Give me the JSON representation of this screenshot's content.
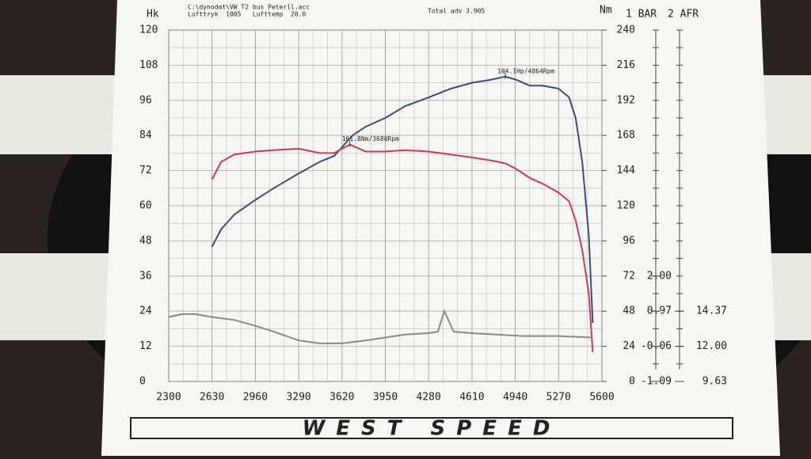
{
  "chart_data": {
    "type": "line",
    "header": [
      "C:\\dynodat\\VW T2 bus Peterll.acc",
      "Lufttryk  1005   Lufttemp  20.0",
      "Total adv 3.905"
    ],
    "y_label": "Hk",
    "y2_label": "Nm",
    "y3_label": "1 BAR",
    "y4_label": "2 AFR",
    "xlim": [
      2300,
      5600
    ],
    "xticks": [
      2300,
      2630,
      2960,
      3290,
      3620,
      3950,
      4280,
      4610,
      4940,
      5270,
      5600
    ],
    "ylim": [
      0,
      120
    ],
    "yticks": [
      0,
      12,
      24,
      36,
      48,
      60,
      72,
      84,
      96,
      108,
      120
    ],
    "y2lim": [
      0,
      240
    ],
    "y2ticks": [
      0,
      24,
      48,
      72,
      96,
      120,
      144,
      168,
      192,
      216,
      240
    ],
    "y3lim": [
      -1.09,
      9.21
    ],
    "y3ticks": [
      {
        "value": -1.09,
        "label": "-1.09"
      },
      {
        "value": -0.06,
        "label": "-0.06"
      },
      {
        "value": 0.97,
        "label": "0.97"
      },
      {
        "value": 2,
        "label": "2.00"
      }
    ],
    "y4lim": [
      9.63,
      33.33
    ],
    "y4ticks": [
      {
        "value": 9.63,
        "label": "9.63"
      },
      {
        "value": 12,
        "label": "12.00"
      },
      {
        "value": 14.37,
        "label": "14.37"
      }
    ],
    "grid": true,
    "series": [
      {
        "color": "#3d4a7a",
        "axis": "y",
        "x": [
          2630,
          2700,
          2800,
          2960,
          3100,
          3290,
          3450,
          3560,
          3620,
          3700,
          3800,
          3950,
          4100,
          4280,
          4450,
          4610,
          4750,
          4864,
          4950,
          5050,
          5150,
          5270,
          5350,
          5400,
          5450,
          5500,
          5530
        ],
        "values": [
          46,
          52,
          57,
          62,
          66,
          71,
          75,
          77,
          80,
          84,
          87,
          90,
          94,
          97,
          100,
          102,
          103,
          104.1,
          103,
          101,
          101,
          100,
          97,
          90,
          75,
          50,
          20
        ]
      },
      {
        "color": "#c83c5a",
        "axis": "y2",
        "x": [
          2630,
          2700,
          2800,
          2960,
          3100,
          3290,
          3450,
          3560,
          3680,
          3800,
          3950,
          4100,
          4280,
          4450,
          4610,
          4750,
          4864,
          4950,
          5050,
          5150,
          5270,
          5350,
          5400,
          5450,
          5500,
          5530
        ],
        "values": [
          138,
          150,
          155,
          157,
          158,
          159,
          156,
          156,
          161.8,
          157,
          157,
          158,
          157,
          155,
          153,
          151,
          149,
          145,
          139,
          135,
          129,
          123,
          110,
          90,
          60,
          20
        ]
      },
      {
        "color": "#888888",
        "axis": "y",
        "x": [
          2300,
          2400,
          2500,
          2630,
          2800,
          2960,
          3100,
          3290,
          3450,
          3620,
          3800,
          3950,
          4100,
          4280,
          4350,
          4400,
          4470,
          4610,
          4800,
          5000,
          5270,
          5530
        ],
        "values": [
          22,
          23,
          23,
          22,
          21,
          19,
          17,
          14,
          13,
          13,
          14,
          15,
          16,
          16.5,
          17,
          24,
          17,
          16.5,
          16,
          15.5,
          15.5,
          15
        ]
      }
    ],
    "annotations": [
      {
        "text": "104.1Hp/4864Rpm",
        "x": 4864,
        "y": 104.1,
        "axis": "y"
      },
      {
        "text": "161.8Nm/3680Rpm",
        "x": 3680,
        "y": 161.8,
        "axis": "y2"
      }
    ],
    "footer": "WEST SPEED"
  }
}
